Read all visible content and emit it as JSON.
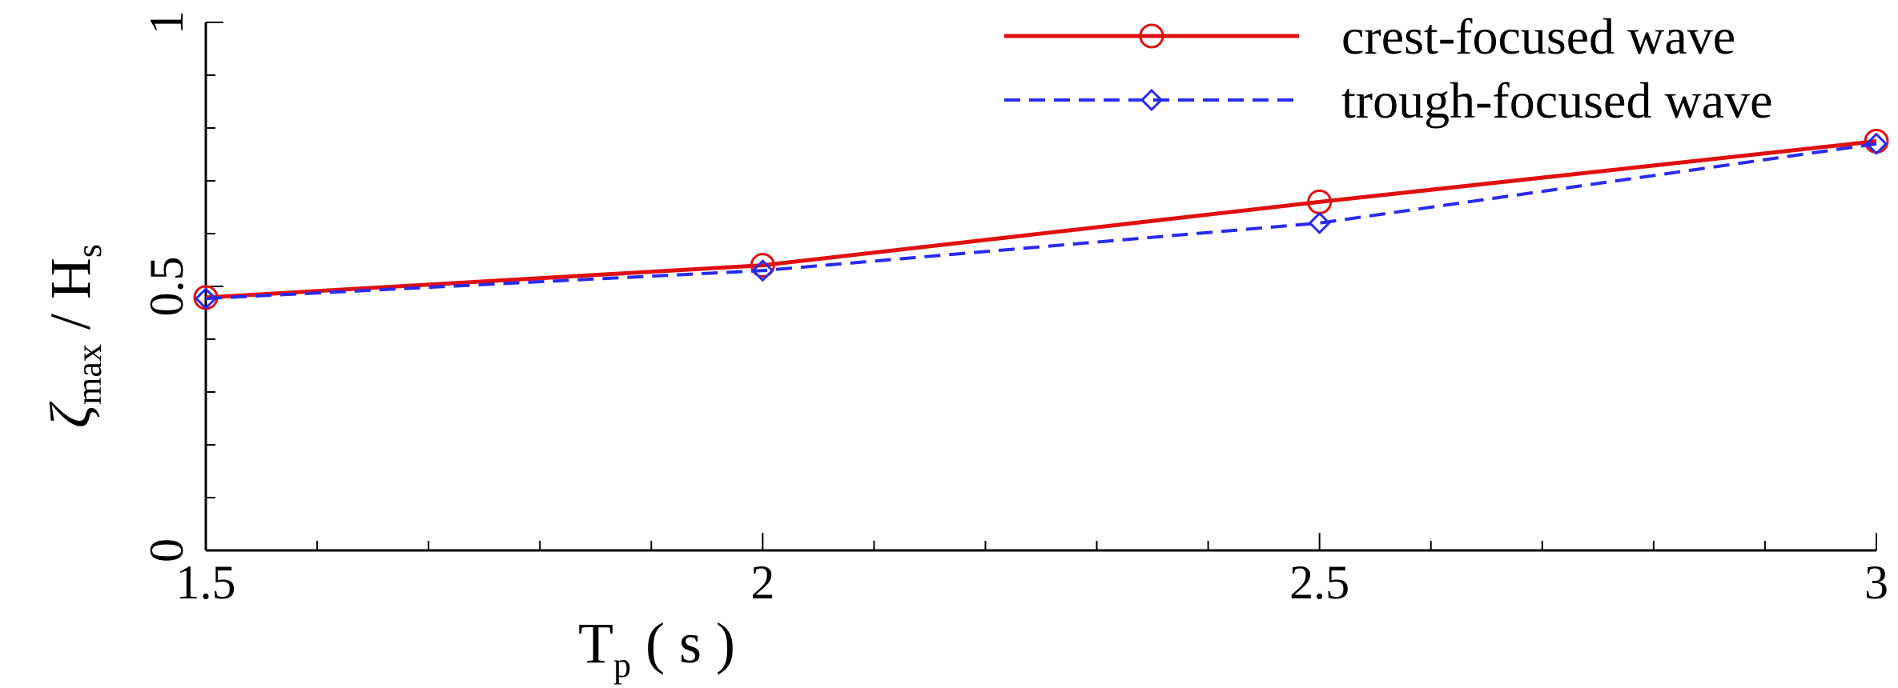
{
  "chart_data": {
    "type": "line",
    "xlabel": {
      "main": "T",
      "sub": "p",
      "suffix": " ( s )"
    },
    "ylabel": {
      "main": "ζ",
      "sub": "max",
      "mid": " / H",
      "sub2": "s"
    },
    "xlim": [
      1.5,
      3
    ],
    "ylim": [
      0,
      1
    ],
    "xticks": [
      "1.5",
      "2",
      "2.5",
      "3"
    ],
    "yticks": [
      "0",
      "0.5",
      "1"
    ],
    "x": [
      1.5,
      2,
      2.5,
      3
    ],
    "series": [
      {
        "name": "crest-focused wave",
        "color": "#e01010",
        "dash": "solid",
        "marker": "circle",
        "values": [
          0.479,
          0.54,
          0.66,
          0.775
        ]
      },
      {
        "name": "trough-focused wave",
        "color": "#2a2af0",
        "dash": "dashed",
        "marker": "diamond",
        "values": [
          0.477,
          0.53,
          0.62,
          0.77
        ]
      }
    ],
    "legend_position": "top-right",
    "grid": false
  }
}
